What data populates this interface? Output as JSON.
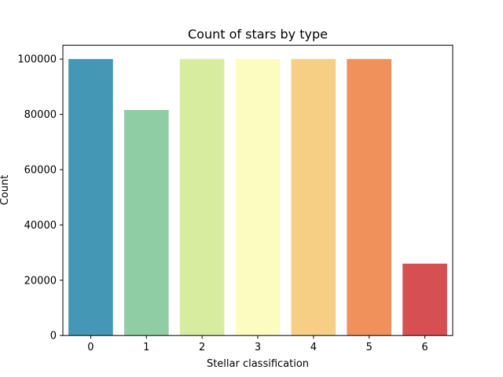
{
  "chart_data": {
    "type": "bar",
    "title": "Count of stars by type",
    "xlabel": "Stellar classification",
    "ylabel": "Count",
    "categories": [
      "0",
      "1",
      "2",
      "3",
      "4",
      "5",
      "6"
    ],
    "values": [
      100000,
      81600,
      100000,
      100000,
      100000,
      100000,
      26000
    ],
    "colors": [
      "#4597b6",
      "#8fcda4",
      "#d8ec9f",
      "#fcfcc1",
      "#f7cf84",
      "#f0905b",
      "#d64f53"
    ],
    "ylim": [
      0,
      105000
    ],
    "yticks": [
      0,
      20000,
      40000,
      60000,
      80000,
      100000
    ],
    "grid": false,
    "legend": "none"
  }
}
